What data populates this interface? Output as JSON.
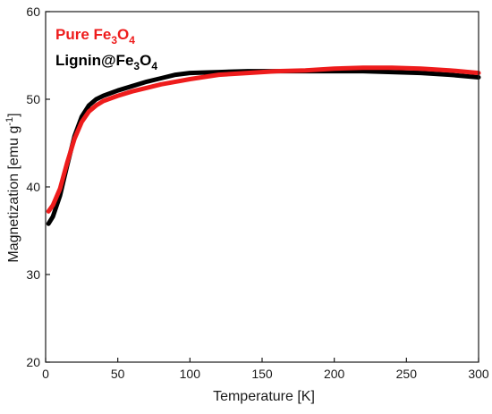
{
  "chart_data": {
    "type": "line",
    "xlabel": "Temperature [K]",
    "ylabel_main": "Magnetization [emu g",
    "ylabel_sup": "-1",
    "ylabel_close": "]",
    "xlim": [
      0,
      300
    ],
    "ylim": [
      20,
      60
    ],
    "x_ticks": [
      0,
      50,
      100,
      150,
      200,
      250,
      300
    ],
    "y_ticks": [
      20,
      30,
      40,
      50,
      60
    ],
    "x_tick_labels": [
      "0",
      "50",
      "100",
      "150",
      "200",
      "250",
      "300"
    ],
    "y_tick_labels": [
      "20",
      "30",
      "40",
      "50",
      "60"
    ],
    "grid": false,
    "legend_position": "top-left",
    "series": [
      {
        "name_parts": [
          "Lignin@Fe",
          "3",
          "O",
          "4"
        ],
        "color": "#000000",
        "x": [
          2,
          5,
          10,
          15,
          20,
          25,
          30,
          35,
          40,
          50,
          60,
          70,
          80,
          90,
          100,
          120,
          140,
          160,
          180,
          200,
          220,
          240,
          260,
          280,
          300
        ],
        "y": [
          35.8,
          36.6,
          39.0,
          42.5,
          45.8,
          48.0,
          49.3,
          50.0,
          50.4,
          51.0,
          51.5,
          52.0,
          52.4,
          52.8,
          53.0,
          53.1,
          53.2,
          53.2,
          53.2,
          53.2,
          53.2,
          53.1,
          53.0,
          52.8,
          52.5
        ]
      },
      {
        "name_parts": [
          "Pure Fe",
          "3",
          "O",
          "4"
        ],
        "color": "#ee1c1c",
        "x": [
          2,
          5,
          10,
          15,
          20,
          25,
          30,
          35,
          40,
          50,
          60,
          70,
          80,
          90,
          100,
          120,
          140,
          160,
          180,
          200,
          220,
          240,
          260,
          280,
          300
        ],
        "y": [
          37.2,
          37.9,
          39.8,
          42.8,
          45.5,
          47.4,
          48.6,
          49.3,
          49.8,
          50.4,
          50.9,
          51.3,
          51.7,
          52.0,
          52.3,
          52.8,
          53.0,
          53.2,
          53.3,
          53.5,
          53.6,
          53.6,
          53.5,
          53.3,
          53.0
        ]
      }
    ]
  }
}
